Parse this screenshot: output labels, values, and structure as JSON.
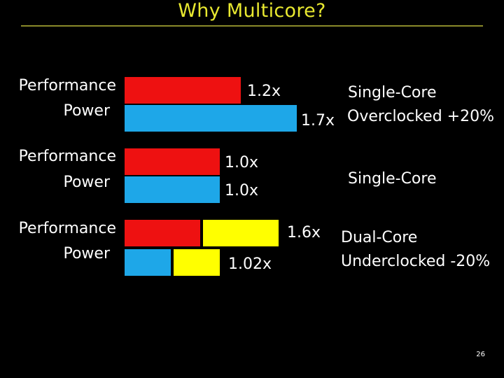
{
  "slide": {
    "title": "Why Multicore?",
    "page_number": "26"
  },
  "rows": [
    {
      "performance_label": "Performance",
      "power_label": "Power",
      "performance_value": "1.2x",
      "power_value": "1.7x",
      "description_line1": "Single-Core",
      "description_line2": "Overclocked +20%",
      "colors": {
        "performance": "#ee1111",
        "power": "#1ea7e8"
      }
    },
    {
      "performance_label": "Performance",
      "power_label": "Power",
      "performance_value": "1.0x",
      "power_value": "1.0x",
      "description_line1": "Single-Core",
      "colors": {
        "performance": "#ee1111",
        "power": "#1ea7e8"
      }
    },
    {
      "performance_label": "Performance",
      "power_label": "Power",
      "performance_value": "1.6x",
      "power_value": "1.02x",
      "description_line1": "Dual-Core",
      "description_line2": "Underclocked -20%",
      "colors": {
        "core1": "#ee1111",
        "core2_performance": "#ffff00",
        "power": "#1ea7e8",
        "core2_power": "#ffff00"
      }
    }
  ]
}
